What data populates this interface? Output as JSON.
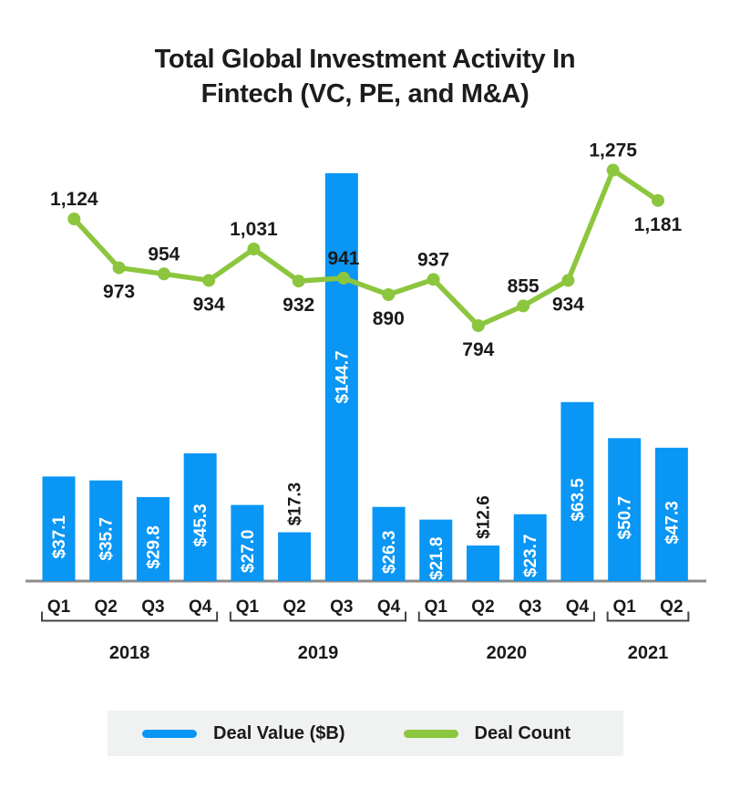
{
  "title": {
    "line1": "Total Global Investment Activity In",
    "line2": "Fintech (VC, PE, and M&A)"
  },
  "legend": {
    "deal_value_label": "Deal Value ($B)",
    "deal_count_label": "Deal Count"
  },
  "colors": {
    "bar": "#0996F5",
    "line": "#8CC63E",
    "axis": "#8B8B8B",
    "bracket": "#444444",
    "text": "#1a1a1a",
    "bar_label_inside": "#ffffff",
    "legend_bg": "#F0F1F1"
  },
  "chart_data": {
    "type": "bar",
    "subtype": "bar+line combo",
    "title": "Total Global Investment Activity In Fintech (VC, PE, and M&A)",
    "categories": [
      "Q1",
      "Q2",
      "Q3",
      "Q4",
      "Q1",
      "Q2",
      "Q3",
      "Q4",
      "Q1",
      "Q2",
      "Q3",
      "Q4",
      "Q1",
      "Q2"
    ],
    "year_groups": [
      {
        "label": "2018",
        "quarters": 4
      },
      {
        "label": "2019",
        "quarters": 4
      },
      {
        "label": "2020",
        "quarters": 4
      },
      {
        "label": "2021",
        "quarters": 2
      }
    ],
    "series": [
      {
        "name": "Deal Value ($B)",
        "type": "bar",
        "values": [
          37.1,
          35.7,
          29.8,
          45.3,
          27.0,
          17.3,
          144.7,
          26.3,
          21.8,
          12.6,
          23.7,
          63.5,
          50.7,
          47.3
        ],
        "labels": [
          "$37.1",
          "$35.7",
          "$29.8",
          "$45.3",
          "$27.0",
          "$17.3",
          "$144.7",
          "$26.3",
          "$21.8",
          "$12.6",
          "$23.7",
          "$63.5",
          "$50.7",
          "$47.3"
        ],
        "label_outside": [
          false,
          false,
          false,
          false,
          false,
          true,
          false,
          false,
          false,
          true,
          false,
          false,
          false,
          false
        ]
      },
      {
        "name": "Deal Count",
        "type": "line",
        "values": [
          1124,
          973,
          954,
          934,
          1031,
          932,
          941,
          890,
          937,
          794,
          855,
          934,
          1275,
          1181
        ],
        "labels": [
          "1,124",
          "973",
          "954",
          "934",
          "1,031",
          "932",
          "941",
          "890",
          "937",
          "794",
          "855",
          "934",
          "1,275",
          "1,181"
        ],
        "label_side": [
          "above",
          "below",
          "above",
          "below",
          "above",
          "below",
          "above",
          "below",
          "above",
          "below",
          "above",
          "below",
          "above",
          "below"
        ]
      }
    ],
    "layout_hints": {
      "legend_position": "bottom",
      "grid": false,
      "value_axis_visible": false,
      "baseline_axis_visible": true,
      "bar_labels_rotated_90": true
    }
  }
}
